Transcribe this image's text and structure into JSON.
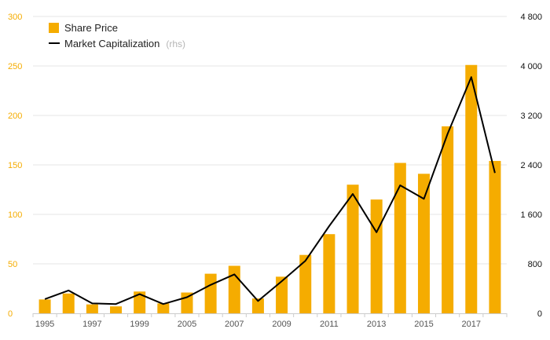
{
  "chart_data": {
    "type": "bar",
    "x": [
      1995,
      1996,
      1997,
      1998,
      1999,
      2000,
      2005,
      2006,
      2007,
      2008,
      2009,
      2010,
      2011,
      2012,
      2013,
      2014,
      2015,
      2016,
      2017,
      2018
    ],
    "series": [
      {
        "name": "Share Price",
        "type": "bar",
        "axis": "left",
        "values": [
          14,
          20,
          9,
          7,
          22,
          10,
          21,
          40,
          48,
          15,
          37,
          59,
          80,
          130,
          115,
          152,
          141,
          189,
          251,
          154
        ],
        "color": "#f5ac00"
      },
      {
        "name": "Market Capitalization",
        "name_suffix": "(rhs)",
        "type": "line",
        "axis": "right",
        "values": [
          230,
          370,
          160,
          150,
          310,
          150,
          260,
          460,
          630,
          200,
          520,
          850,
          1410,
          1930,
          1310,
          2070,
          1850,
          2900,
          3820,
          2270
        ],
        "color": "#000000"
      }
    ],
    "x_tick_labels": [
      "1995",
      "1997",
      "1999",
      "2005",
      "2007",
      "2009",
      "2011",
      "2013",
      "2015",
      "2017"
    ],
    "y_left": {
      "ylim": [
        0,
        300
      ],
      "ticks": [
        0,
        50,
        100,
        150,
        200,
        250,
        300
      ],
      "tick_labels": [
        "0",
        "50",
        "100",
        "150",
        "200",
        "250",
        "300"
      ],
      "color": "#f5ac00"
    },
    "y_right": {
      "ylim": [
        0,
        4800
      ],
      "ticks": [
        0,
        800,
        1600,
        2400,
        3200,
        4000,
        4800
      ],
      "tick_labels": [
        "0",
        "800",
        "1 600",
        "2 400",
        "3 200",
        "4 000",
        "4 800"
      ]
    },
    "grid": true,
    "legend_position": "top-left"
  }
}
